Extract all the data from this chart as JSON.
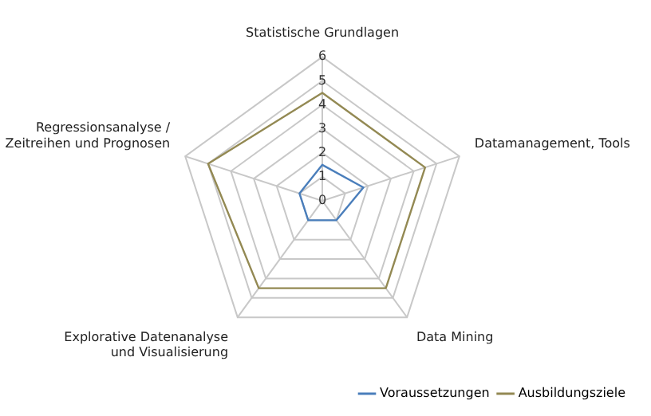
{
  "chart_data": {
    "type": "radar",
    "categories": [
      "Statistische Grundlagen",
      "Datamanagement, Tools",
      "Data Mining",
      "Explorative Datenanalyse\nund Visualisierung",
      "Regressionsanalyse /\nZeitreihen und Prognosen"
    ],
    "series": [
      {
        "name": "Voraussetzungen",
        "color": "#4a7ebb",
        "values": [
          1.5,
          1.8,
          1,
          1,
          1
        ]
      },
      {
        "name": "Ausbildungsziele",
        "color": "#938953",
        "values": [
          4.5,
          4.5,
          4.5,
          4.5,
          5
        ]
      }
    ],
    "ylim": [
      0,
      6
    ],
    "yticks": [
      0,
      1,
      2,
      3,
      4,
      5,
      6
    ],
    "grid": true,
    "legend": "bottom right",
    "marker": "none",
    "line_style": "solid"
  }
}
